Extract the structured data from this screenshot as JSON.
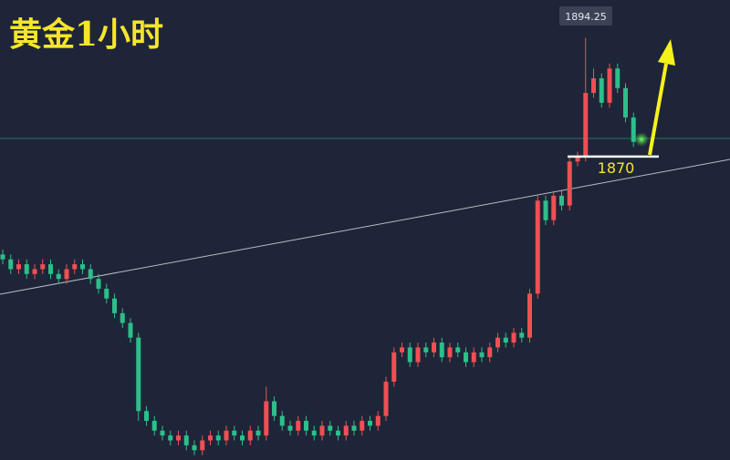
{
  "chart_data": {
    "type": "candlestick",
    "title": "黄金1小时",
    "ylim": [
      1808,
      1902
    ],
    "up_color": "#ef4f55",
    "down_color": "#2cbf8a",
    "support_level": 1870,
    "open": [
      1850,
      1849,
      1847,
      1848,
      1846,
      1847,
      1848,
      1846,
      1845,
      1847,
      1848,
      1847,
      1845,
      1843,
      1841,
      1838,
      1836,
      1833,
      1818,
      1816,
      1814,
      1813,
      1812,
      1813,
      1811,
      1810,
      1812,
      1813,
      1812,
      1814,
      1813,
      1812,
      1814,
      1813,
      1820,
      1817,
      1815,
      1814,
      1816,
      1814,
      1813,
      1815,
      1814,
      1813,
      1815,
      1814,
      1816,
      1815,
      1817,
      1824,
      1830,
      1831,
      1828,
      1831,
      1830,
      1832,
      1829,
      1831,
      1830,
      1828,
      1830,
      1829,
      1831,
      1833,
      1832,
      1834,
      1833,
      1842,
      1861,
      1857,
      1862,
      1860,
      1869,
      1870,
      1883,
      1886,
      1881,
      1888,
      1884,
      1878
    ],
    "high": [
      1851,
      1850,
      1849,
      1849,
      1848,
      1849,
      1849,
      1847,
      1848,
      1849,
      1849,
      1848,
      1846,
      1844,
      1842,
      1839,
      1837,
      1834,
      1819,
      1817,
      1815,
      1814,
      1814,
      1814,
      1812,
      1813,
      1814,
      1814,
      1815,
      1815,
      1814,
      1815,
      1815,
      1823,
      1821,
      1818,
      1816,
      1817,
      1817,
      1815,
      1816,
      1816,
      1815,
      1816,
      1816,
      1817,
      1817,
      1818,
      1825,
      1831,
      1832,
      1832,
      1832,
      1832,
      1833,
      1833,
      1832,
      1832,
      1831,
      1831,
      1831,
      1832,
      1834,
      1834,
      1835,
      1835,
      1843,
      1862,
      1862,
      1863,
      1863,
      1870,
      1871,
      1894.25,
      1888,
      1887,
      1889,
      1889,
      1885,
      1879
    ],
    "low": [
      1848,
      1846,
      1846,
      1845,
      1845,
      1846,
      1845,
      1844,
      1844,
      1846,
      1846,
      1844,
      1842,
      1840,
      1837,
      1835,
      1832,
      1816,
      1815,
      1813,
      1812,
      1811,
      1811,
      1810,
      1809,
      1809,
      1811,
      1811,
      1811,
      1812,
      1811,
      1811,
      1812,
      1812,
      1816,
      1814,
      1813,
      1813,
      1813,
      1812,
      1812,
      1813,
      1812,
      1812,
      1813,
      1813,
      1814,
      1814,
      1816,
      1823,
      1829,
      1827,
      1827,
      1829,
      1829,
      1828,
      1828,
      1829,
      1827,
      1827,
      1828,
      1828,
      1830,
      1831,
      1831,
      1832,
      1832,
      1841,
      1856,
      1856,
      1859,
      1859,
      1868,
      1869,
      1882,
      1880,
      1880,
      1883,
      1877,
      1872
    ],
    "close": [
      1849,
      1847,
      1848,
      1846,
      1847,
      1848,
      1846,
      1845,
      1847,
      1848,
      1847,
      1845,
      1843,
      1841,
      1838,
      1836,
      1833,
      1818,
      1816,
      1814,
      1813,
      1812,
      1813,
      1811,
      1810,
      1812,
      1813,
      1812,
      1814,
      1813,
      1812,
      1814,
      1813,
      1820,
      1817,
      1815,
      1814,
      1816,
      1814,
      1813,
      1815,
      1814,
      1813,
      1815,
      1814,
      1816,
      1815,
      1817,
      1824,
      1830,
      1831,
      1828,
      1831,
      1830,
      1832,
      1829,
      1831,
      1830,
      1828,
      1830,
      1829,
      1831,
      1833,
      1832,
      1834,
      1833,
      1842,
      1861,
      1857,
      1862,
      1860,
      1869,
      1870,
      1883,
      1886,
      1881,
      1888,
      1884,
      1878,
      1873
    ]
  }
}
